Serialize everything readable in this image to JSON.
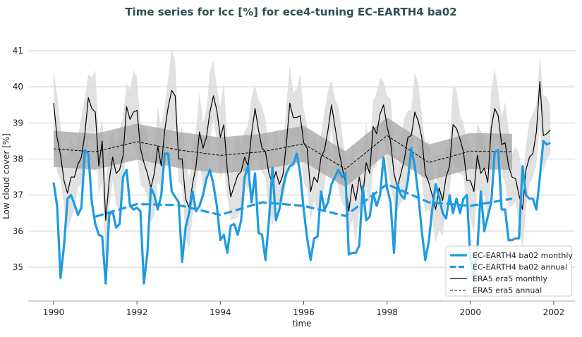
{
  "chart_data": {
    "type": "line",
    "title": "Time series for lcc [%] for ece4-tuning EC-EARTH4 ba02",
    "xlabel": "time",
    "ylabel": "Low cloud cover [%]",
    "xlim": [
      1989.4,
      2002.5
    ],
    "ylim": [
      34.1,
      41.6
    ],
    "xticks": [
      1990,
      1992,
      1994,
      1996,
      1998,
      2000,
      2002
    ],
    "yticks": [
      35,
      36,
      37,
      38,
      39,
      40,
      41
    ],
    "grid": "horizontal",
    "legend_placement": "lower-right",
    "colors": {
      "model": "#1f9be0",
      "obs": "#000000",
      "band_monthly": "#dcdcdc",
      "band_annual": "#a9a9a9",
      "title": "#2f4f4f",
      "grid": "#cccccc"
    },
    "monthly_start": 1990.0,
    "series": [
      {
        "name": "EC-EARTH4 ba02 monthly",
        "style": "solid-thick",
        "values": [
          37.35,
          36.7,
          34.7,
          35.6,
          36.9,
          37.0,
          36.75,
          36.45,
          36.65,
          38.25,
          38.15,
          36.8,
          36.2,
          35.9,
          35.85,
          34.55,
          36.45,
          36.55,
          36.1,
          36.2,
          37.5,
          37.7,
          36.7,
          36.6,
          36.65,
          36.55,
          34.55,
          35.4,
          37.2,
          37.0,
          36.6,
          37.0,
          38.15,
          38.15,
          37.1,
          36.95,
          36.8,
          35.15,
          36.1,
          36.5,
          37.1,
          36.55,
          36.7,
          37.0,
          37.45,
          37.7,
          37.3,
          36.7,
          35.75,
          35.9,
          35.4,
          36.15,
          36.2,
          35.9,
          36.3,
          37.5,
          37.8,
          36.8,
          37.6,
          35.95,
          35.9,
          35.2,
          36.3,
          37.75,
          36.3,
          36.6,
          37.2,
          37.6,
          37.8,
          37.85,
          38.15,
          37.6,
          36.6,
          35.8,
          35.2,
          35.8,
          35.85,
          37.1,
          36.6,
          36.8,
          37.3,
          37.5,
          37.7,
          37.5,
          37.6,
          35.35,
          35.4,
          35.4,
          35.6,
          37.25,
          36.3,
          36.4,
          37.05,
          36.7,
          37.0,
          38.05,
          37.2,
          36.8,
          35.4,
          37.3,
          37.0,
          36.9,
          37.4,
          38.3,
          37.8,
          37.0,
          36.0,
          35.2,
          35.7,
          36.6,
          37.3,
          36.95,
          36.5,
          36.35,
          37.0,
          36.5,
          36.9,
          36.5,
          36.9,
          37.0,
          35.2,
          34.6,
          35.5,
          37.1,
          36.0,
          36.4,
          36.8,
          38.2,
          38.25,
          36.6,
          36.6,
          35.75,
          35.75,
          35.8,
          35.8,
          37.8,
          37.0,
          36.9,
          36.9,
          36.6,
          37.5,
          38.5,
          38.4,
          38.45
        ]
      },
      {
        "name": "EC-EARTH4 ba02 annual",
        "style": "dashed-thick",
        "x": [
          1991,
          1992,
          1993,
          1994,
          1995,
          1996,
          1997,
          1998,
          1999,
          2000,
          2001
        ],
        "values": [
          36.4,
          36.75,
          36.72,
          36.45,
          36.8,
          36.7,
          36.42,
          37.3,
          36.8,
          36.7,
          36.9
        ]
      },
      {
        "name": "ERA5 era5 monthly",
        "style": "solid-thin",
        "spread": 0.9,
        "values": [
          39.55,
          38.6,
          38.1,
          37.4,
          37.05,
          37.5,
          37.5,
          37.85,
          38.05,
          38.7,
          39.7,
          39.4,
          39.3,
          37.8,
          38.5,
          36.3,
          37.4,
          38.05,
          37.6,
          37.7,
          38.1,
          39.45,
          39.1,
          39.3,
          39.35,
          38.3,
          37.9,
          37.6,
          37.2,
          37.6,
          38.35,
          37.8,
          38.8,
          39.45,
          39.9,
          39.75,
          38.0,
          38.0,
          36.9,
          36.65,
          37.3,
          37.8,
          38.75,
          38.3,
          38.6,
          39.3,
          39.75,
          39.35,
          38.6,
          38.95,
          37.7,
          36.95,
          37.25,
          37.55,
          37.65,
          38.05,
          37.8,
          38.7,
          39.4,
          38.8,
          38.3,
          38.2,
          37.6,
          37.3,
          37.65,
          37.3,
          37.55,
          38.4,
          39.55,
          39.15,
          39.15,
          39.2,
          38.45,
          38.3,
          37.1,
          37.5,
          37.35,
          38.05,
          38.25,
          38.8,
          39.5,
          38.9,
          38.3,
          37.8,
          37.35,
          36.55,
          37.3,
          36.85,
          37.5,
          36.95,
          37.9,
          37.6,
          38.9,
          38.7,
          39.25,
          39.5,
          38.9,
          38.5,
          37.6,
          37.2,
          37.6,
          38.0,
          38.6,
          38.65,
          39.3,
          39.05,
          38.6,
          37.6,
          37.35,
          37.0,
          36.6,
          37.2,
          36.85,
          37.5,
          37.8,
          38.95,
          38.85,
          38.55,
          38.2,
          37.4,
          37.4,
          37.1,
          38.1,
          37.6,
          37.75,
          37.35,
          38.85,
          39.4,
          39.2,
          38.4,
          38.45,
          37.8,
          37.5,
          37.45,
          37.0,
          36.6,
          37.7,
          38.05,
          38.15,
          38.75,
          40.15,
          38.65,
          38.7,
          38.8
        ]
      },
      {
        "name": "ERA5 era5 annual",
        "style": "dashed-thin",
        "spread": 0.5,
        "x": [
          1990,
          1991,
          1992,
          1993,
          1994,
          1995,
          1996,
          1997,
          1998,
          1999,
          2000,
          2001
        ],
        "values": [
          38.28,
          38.2,
          38.48,
          38.25,
          38.1,
          38.2,
          38.42,
          37.72,
          38.65,
          37.9,
          38.22,
          38.2
        ]
      }
    ]
  }
}
